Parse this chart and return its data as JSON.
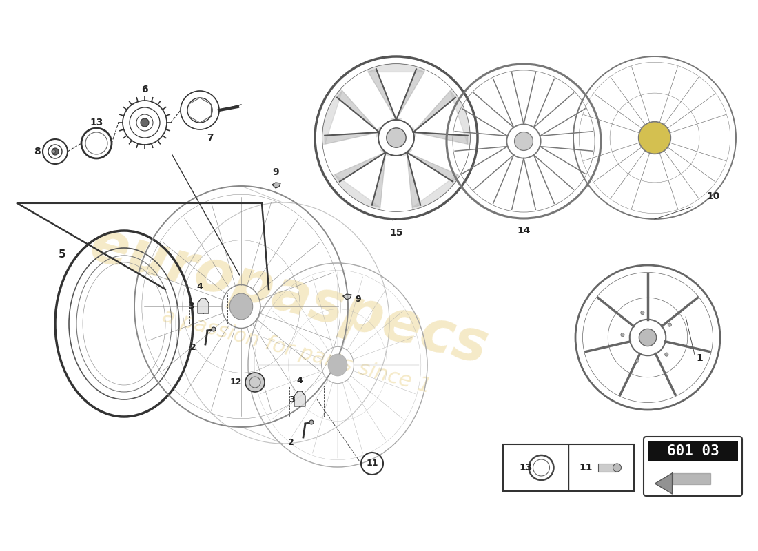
{
  "background_color": "#ffffff",
  "part_number": "601 03",
  "watermark_color": "#d4a000",
  "watermark_alpha": 0.22,
  "line_color": "#333333",
  "label_color": "#222222",
  "spoke_color": "#888888",
  "rim_color": "#777777"
}
